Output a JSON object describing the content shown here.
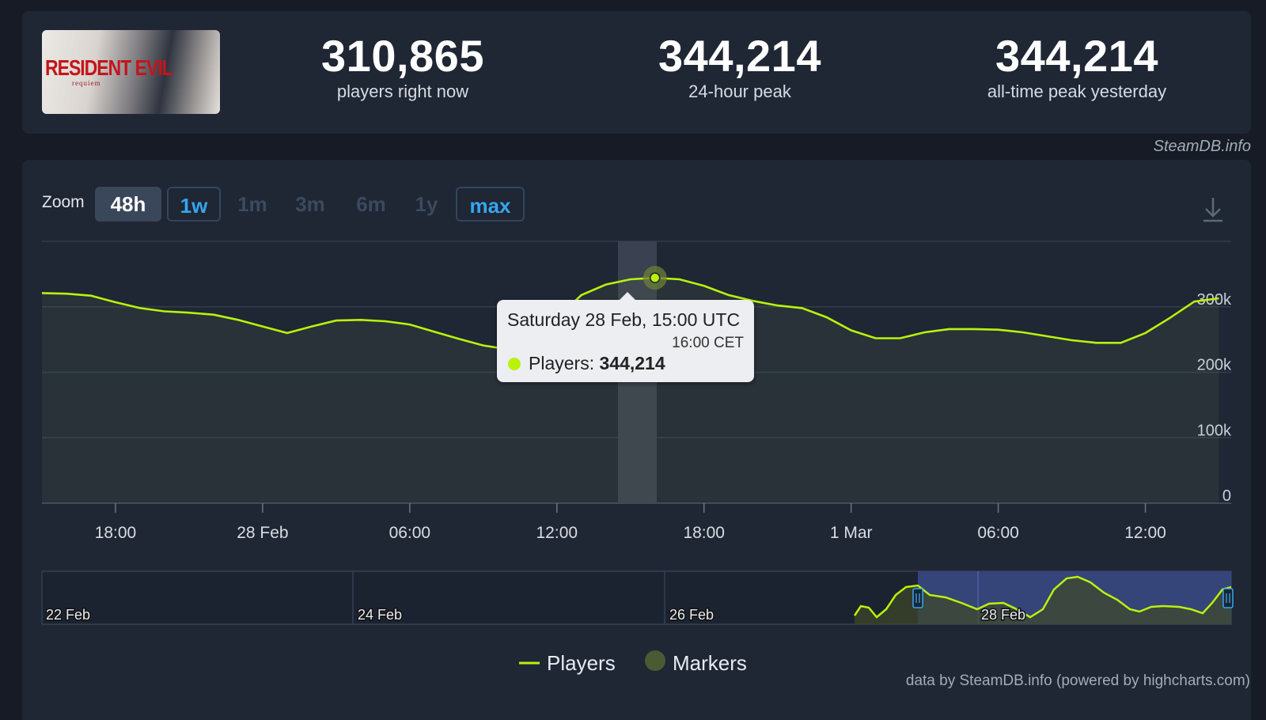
{
  "game": {
    "name": "RESIDENT EVIL",
    "subtitle": "requiem"
  },
  "stats": [
    {
      "value": "310,865",
      "label": "players right now"
    },
    {
      "value": "344,214",
      "label": "24-hour peak"
    },
    {
      "value": "344,214",
      "label": "all-time peak yesterday"
    }
  ],
  "attribution": "SteamDB.info",
  "zoom": {
    "label": "Zoom",
    "buttons": [
      "48h",
      "1w",
      "1m",
      "3m",
      "6m",
      "1y",
      "max"
    ],
    "active": "48h",
    "outlined": [
      "1w",
      "max"
    ]
  },
  "tooltip": {
    "title": "Saturday 28 Feb, 15:00 UTC",
    "subtitle": "16:00 CET",
    "series_label": "Players:",
    "value": "344,214"
  },
  "legend": {
    "players": "Players",
    "markers": "Markers"
  },
  "footer": "data by SteamDB.info (powered by highcharts.com)",
  "icons": {
    "download": "download-icon",
    "navigator_handle": "grip-handle-icon"
  },
  "colors": {
    "series": "#b9f20d",
    "marker": "#4a5a32",
    "navigator_range": "#3a4a86",
    "link": "#35a6f0"
  },
  "chart_data": {
    "type": "line",
    "series": [
      {
        "name": "Players",
        "x": [
          "27 Feb 15:00",
          "27 Feb 16:00",
          "27 Feb 17:00",
          "27 Feb 18:00",
          "27 Feb 19:00",
          "27 Feb 20:00",
          "27 Feb 21:00",
          "27 Feb 22:00",
          "27 Feb 23:00",
          "28 Feb 00:00",
          "28 Feb 01:00",
          "28 Feb 02:00",
          "28 Feb 03:00",
          "28 Feb 04:00",
          "28 Feb 05:00",
          "28 Feb 06:00",
          "28 Feb 07:00",
          "28 Feb 08:00",
          "28 Feb 09:00",
          "28 Feb 10:00",
          "28 Feb 11:00",
          "28 Feb 12:00",
          "28 Feb 13:00",
          "28 Feb 14:00",
          "28 Feb 15:00",
          "28 Feb 16:00",
          "28 Feb 17:00",
          "28 Feb 18:00",
          "28 Feb 19:00",
          "28 Feb 20:00",
          "28 Feb 21:00",
          "28 Feb 22:00",
          "28 Feb 23:00",
          "1 Mar 00:00",
          "1 Mar 01:00",
          "1 Mar 02:00",
          "1 Mar 03:00",
          "1 Mar 04:00",
          "1 Mar 05:00",
          "1 Mar 06:00",
          "1 Mar 07:00",
          "1 Mar 08:00",
          "1 Mar 09:00",
          "1 Mar 10:00",
          "1 Mar 11:00",
          "1 Mar 12:00",
          "1 Mar 13:00",
          "1 Mar 14:00"
        ],
        "values": [
          320000,
          317000,
          307000,
          298000,
          293000,
          291000,
          288000,
          280000,
          270000,
          260000,
          270000,
          279000,
          280000,
          278000,
          273000,
          262000,
          251000,
          241000,
          235000,
          252000,
          282000,
          318000,
          334000,
          342000,
          344214,
          342000,
          332000,
          318000,
          309000,
          302000,
          298000,
          284000,
          264000,
          252000,
          252000,
          261000,
          266000,
          266000,
          265000,
          261000,
          255000,
          249000,
          245000,
          245000,
          260000,
          283000,
          308000,
          313000
        ]
      }
    ],
    "x_ticks": [
      "18:00",
      "28 Feb",
      "06:00",
      "12:00",
      "18:00",
      "1 Mar",
      "06:00",
      "12:00"
    ],
    "y_ticks": [
      "0",
      "100k",
      "200k",
      "300k"
    ],
    "ylim": [
      0,
      400000
    ],
    "highlighted_point": {
      "x": "28 Feb 15:00",
      "value": 344214
    },
    "navigator": {
      "labels": [
        "22 Feb",
        "24 Feb",
        "26 Feb",
        "28 Feb"
      ],
      "selected_range": [
        "27 Feb 15:00",
        "1 Mar 14:00"
      ]
    },
    "legend_position": "bottom-center",
    "grid": true
  }
}
